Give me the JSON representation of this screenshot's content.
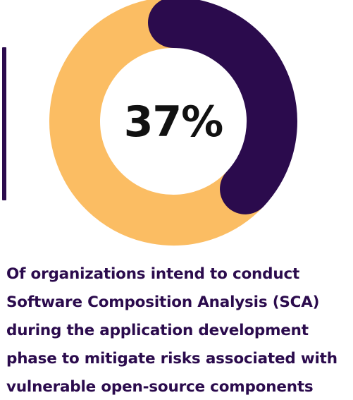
{
  "colors": {
    "primary": "#2b0b4d",
    "secondary": "#fbbd63",
    "background": "#ffffff"
  },
  "chart_data": {
    "type": "pie",
    "variant": "donut",
    "center_label": "37%",
    "slices": [
      {
        "value": 37,
        "color": "#2b0b4d"
      },
      {
        "value": 63,
        "color": "#fbbd63"
      }
    ]
  },
  "caption": {
    "lines": [
      "Of organizations intend to conduct",
      "Software Composition Analysis (SCA)",
      "during the application development",
      "phase to mitigate risks associated with",
      "vulnerable open-source components"
    ]
  }
}
